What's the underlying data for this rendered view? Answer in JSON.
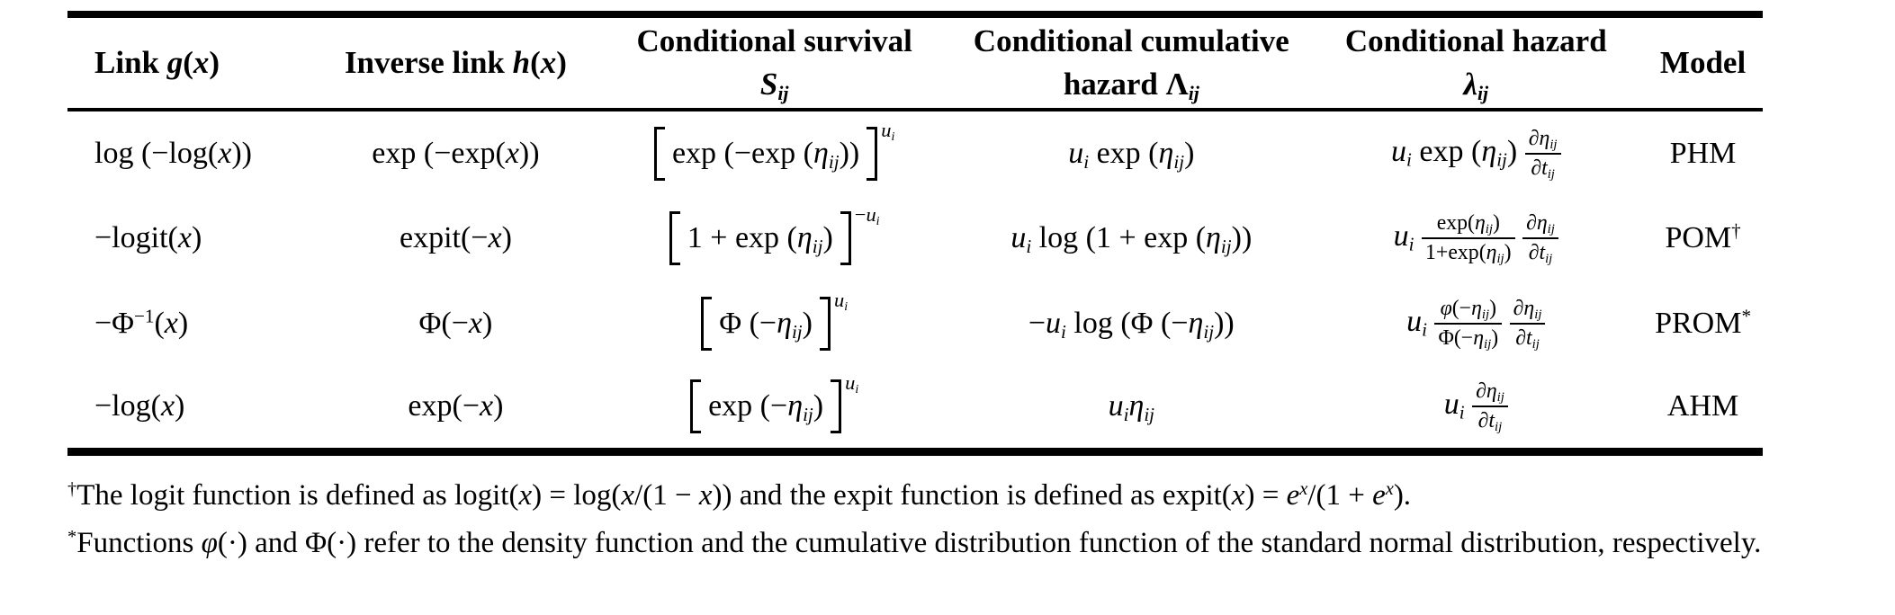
{
  "table": {
    "headers": {
      "link": "Link <i>g</i>(<i>x</i>)",
      "inverse_link": "Inverse link <i>h</i>(<i>x</i>)",
      "conditional_survival_line1": "Conditional survival",
      "conditional_survival_line2": "<i>S</i><sub><i>ij</i></sub>",
      "conditional_cumulative_line1": "Conditional cumulative",
      "conditional_cumulative_line2": "hazard Λ<sub><i>ij</i></sub>",
      "conditional_hazard_line1": "Conditional hazard",
      "conditional_hazard_line2": "<i>λ</i><sub><i>ij</i></sub>",
      "model": "Model"
    },
    "rows": [
      {
        "link": "log (−log(<i>x</i>))",
        "inverse_link": "exp (−exp(<i>x</i>))",
        "survival": "<span class=\"pow\"><span class=\"bigbr\"><span class=\"bl\"></span><span class=\"inner\">exp (−exp (<i>η</i><sub><i>ij</i></sub>))</span><span class=\"br\"></span></span><span class=\"expo\"><i>u</i><sub><i>i</i></sub></span></span>",
        "cumulative_hazard": "<i>u</i><sub><i>i</i></sub> exp (<i>η</i><sub><i>ij</i></sub>)",
        "hazard": "<i>u</i><sub><i>i</i></sub> exp (<i>η</i><sub><i>ij</i></sub>) <span class=\"frac sm\"><span class=\"num\"><i>∂η</i><sub><i>ij</i></sub></span><span class=\"den\"><i>∂t</i><sub><i>ij</i></sub></span></span>",
        "model": "PHM"
      },
      {
        "link": "−logit(<i>x</i>)",
        "inverse_link": "expit(−<i>x</i>)",
        "survival": "<span class=\"pow\"><span class=\"bigbr\"><span class=\"bl\"></span><span class=\"inner\">1 + exp (<i>η</i><sub><i>ij</i></sub>)</span><span class=\"br\"></span></span><span class=\"expo\">−<i>u</i><sub><i>i</i></sub></span></span>",
        "cumulative_hazard": "<i>u</i><sub><i>i</i></sub> log (1 + exp (<i>η</i><sub><i>ij</i></sub>))",
        "hazard": "<i>u</i><sub><i>i</i></sub> <span class=\"frac sm\"><span class=\"num\">exp(<i>η</i><sub><i>ij</i></sub>)</span><span class=\"den\">1+exp(<i>η</i><sub><i>ij</i></sub>)</span></span> <span class=\"frac sm\"><span class=\"num\"><i>∂η</i><sub><i>ij</i></sub></span><span class=\"den\"><i>∂t</i><sub><i>ij</i></sub></span></span>",
        "model": "POM<sup>†</sup>"
      },
      {
        "link": "−Φ<sup>−1</sup>(<i>x</i>)",
        "inverse_link": "Φ(−<i>x</i>)",
        "survival": "<span class=\"pow\"><span class=\"bigbr\"><span class=\"bl\"></span><span class=\"inner\">Φ (−<i>η</i><sub><i>ij</i></sub>)</span><span class=\"br\"></span></span><span class=\"expo\"><i>u</i><sub><i>i</i></sub></span></span>",
        "cumulative_hazard": "−<i>u</i><sub><i>i</i></sub> log (Φ (−<i>η</i><sub><i>ij</i></sub>))",
        "hazard": "<i>u</i><sub><i>i</i></sub> <span class=\"frac sm\"><span class=\"num\"><i>φ</i>(−<i>η</i><sub><i>ij</i></sub>)</span><span class=\"den\">Φ(−<i>η</i><sub><i>ij</i></sub>)</span></span> <span class=\"frac sm\"><span class=\"num\"><i>∂η</i><sub><i>ij</i></sub></span><span class=\"den\"><i>∂t</i><sub><i>ij</i></sub></span></span>",
        "model": "PROM<sup>*</sup>"
      },
      {
        "link": "−log(<i>x</i>)",
        "inverse_link": "exp(−<i>x</i>)",
        "survival": "<span class=\"pow\"><span class=\"bigbr\"><span class=\"bl\"></span><span class=\"inner\">exp (−<i>η</i><sub><i>ij</i></sub>)</span><span class=\"br\"></span></span><span class=\"expo\"><i>u</i><sub><i>i</i></sub></span></span>",
        "cumulative_hazard": "<i>u</i><sub><i>i</i></sub><i>η</i><sub><i>ij</i></sub>",
        "hazard": "<i>u</i><sub><i>i</i></sub> <span class=\"frac sm\"><span class=\"num\"><i>∂η</i><sub><i>ij</i></sub></span><span class=\"den\"><i>∂t</i><sub><i>ij</i></sub></span></span>",
        "model": "AHM"
      }
    ]
  },
  "footnotes": {
    "dagger": "<sup>†</sup>The logit function is defined as logit(<i>x</i>) = log(<i>x</i>/(1 − <i>x</i>)) and the expit function is defined as expit(<i>x</i>) = <i>e</i><sup><i>x</i></sup>/(1 + <i>e</i><sup><i>x</i></sup>).",
    "asterisk": "<sup>*</sup>Functions <i>φ</i>(·) and Φ(·) refer to the density function and the cumulative distribution function of the standard normal distribution, respectively."
  }
}
